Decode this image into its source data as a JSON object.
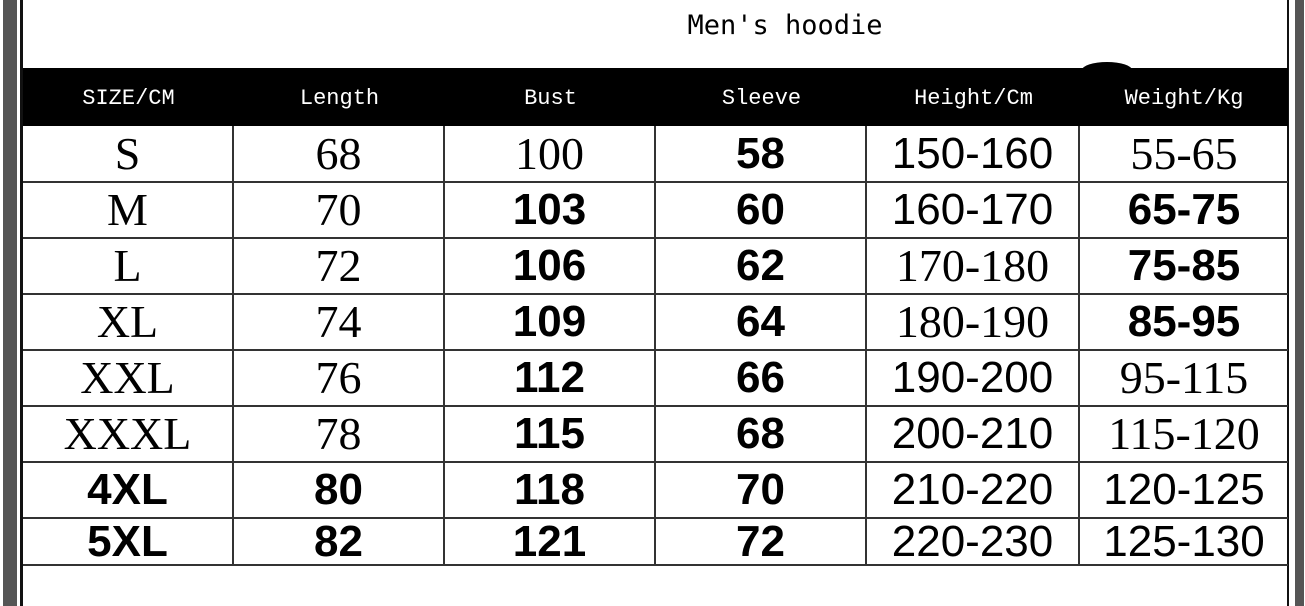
{
  "title": "Men's hoodie",
  "headers": [
    "SIZE/CM",
    "Length",
    "Bust",
    "Sleeve",
    "Height/Cm",
    "Weight/Kg"
  ],
  "rows": [
    [
      "S",
      "68",
      "100",
      "58",
      "150-160",
      "55-65"
    ],
    [
      "M",
      "70",
      "103",
      "60",
      "160-170",
      "65-75"
    ],
    [
      "L",
      "72",
      "106",
      "62",
      "170-180",
      "75-85"
    ],
    [
      "XL",
      "74",
      "109",
      "64",
      "180-190",
      "85-95"
    ],
    [
      "XXL",
      "76",
      "112",
      "66",
      "190-200",
      "95-115"
    ],
    [
      "XXXL",
      "78",
      "115",
      "68",
      "200-210",
      "115-120"
    ],
    [
      "4XL",
      "80",
      "118",
      "70",
      "210-220",
      "120-125"
    ],
    [
      "5XL",
      "82",
      "121",
      "72",
      "220-230",
      "125-130"
    ]
  ],
  "colors": {
    "header_bg": "#000000",
    "header_text": "#ffffff",
    "frame": "#555555"
  }
}
